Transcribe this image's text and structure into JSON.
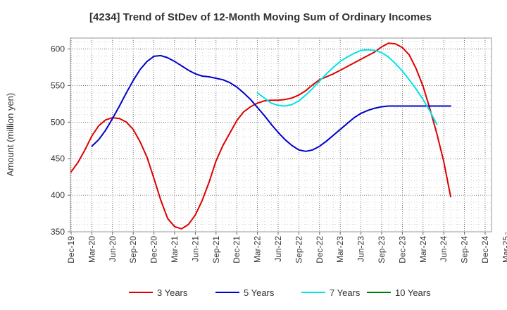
{
  "chart_data": {
    "type": "line",
    "title": "[4234]  Trend of StDev of 12-Month Moving Sum of Ordinary Incomes",
    "xlabel": "",
    "ylabel": "Amount (million yen)",
    "ylim": [
      350,
      615
    ],
    "yticks": [
      350,
      400,
      450,
      500,
      550,
      600
    ],
    "grid": true,
    "legend_position": "bottom",
    "x_tick_labels": [
      "Dec-19",
      "Mar-20",
      "Jun-20",
      "Sep-20",
      "Dec-20",
      "Mar-21",
      "Jun-21",
      "Sep-21",
      "Dec-21",
      "Mar-22",
      "Jun-22",
      "Sep-22",
      "Dec-22",
      "Mar-23",
      "Jun-23",
      "Sep-23",
      "Dec-23",
      "Mar-24",
      "Jun-24",
      "Sep-24",
      "Dec-24",
      "Mar-25"
    ],
    "x_start": "Dec-19",
    "x_months": 63,
    "series": [
      {
        "name": "3 Years",
        "color": "#dd0000",
        "start_month": 0,
        "values": [
          432,
          445,
          462,
          481,
          495,
          503,
          506,
          505,
          500,
          490,
          473,
          452,
          423,
          393,
          368,
          357,
          354,
          360,
          373,
          393,
          418,
          447,
          468,
          485,
          502,
          514,
          521,
          526,
          529,
          530,
          530,
          531,
          533,
          537,
          543,
          551,
          558,
          562,
          566,
          571,
          576,
          581,
          586,
          591,
          596,
          603,
          608,
          607,
          602,
          592,
          573,
          549,
          518,
          484,
          446,
          398
        ]
      },
      {
        "name": "5 Years",
        "color": "#0000cc",
        "start_month": 3,
        "values": [
          467,
          476,
          489,
          505,
          522,
          540,
          557,
          572,
          583,
          590,
          591,
          588,
          583,
          577,
          571,
          566,
          563,
          562,
          560,
          558,
          554,
          548,
          540,
          531,
          520,
          509,
          497,
          486,
          476,
          468,
          462,
          460,
          462,
          467,
          474,
          482,
          490,
          498,
          506,
          512,
          516,
          519,
          521,
          522,
          522,
          522,
          522,
          522,
          522,
          522,
          522,
          522,
          522
        ]
      },
      {
        "name": "7 Years",
        "color": "#00e5e5",
        "start_month": 27,
        "values": [
          540,
          533,
          526,
          523,
          522,
          524,
          529,
          537,
          546,
          556,
          566,
          575,
          583,
          589,
          594,
          598,
          599,
          598,
          595,
          589,
          580,
          570,
          558,
          545,
          531,
          515,
          497
        ]
      },
      {
        "name": "10 Years",
        "color": "#008000",
        "start_month": 0,
        "values": []
      }
    ]
  }
}
